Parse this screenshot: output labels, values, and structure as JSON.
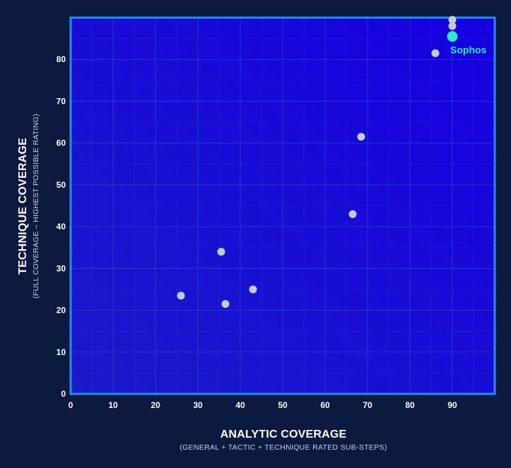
{
  "chart_data": {
    "type": "scatter",
    "xlabel": "ANALYTIC COVERAGE",
    "xlabel_sub": "(GENERAL + TACTIC + TECHNIQUE RATED SUB-STEPS)",
    "ylabel": "TECHNIQUE COVERAGE",
    "ylabel_sub": "(FULL COVERAGE – HIGHEST POSSIBLE RATING)",
    "xlim": [
      0,
      100
    ],
    "ylim": [
      0,
      90
    ],
    "x_ticks": [
      0,
      10,
      20,
      30,
      40,
      50,
      60,
      70,
      80,
      90
    ],
    "y_ticks": [
      0,
      10,
      20,
      30,
      40,
      50,
      60,
      70,
      80
    ],
    "grid": true,
    "points": [
      {
        "x": 26,
        "y": 23.5
      },
      {
        "x": 35.5,
        "y": 34
      },
      {
        "x": 36.5,
        "y": 21.5
      },
      {
        "x": 43,
        "y": 25
      },
      {
        "x": 66.5,
        "y": 43
      },
      {
        "x": 68.5,
        "y": 61.5
      },
      {
        "x": 86,
        "y": 81.5
      },
      {
        "x": 90,
        "y": 88
      },
      {
        "x": 90,
        "y": 89.5
      }
    ],
    "highlight": {
      "name": "Sophos",
      "x": 90,
      "y": 85.5
    },
    "colors": {
      "background": "#0b1a3e",
      "plot_border": "#2a8cf0",
      "plot_fill_start": "#1a1ac8",
      "plot_fill_end": "#1600e0",
      "grid": "#3b63d6",
      "point": "#c4cad6",
      "highlight": "#2ee8c8"
    }
  }
}
